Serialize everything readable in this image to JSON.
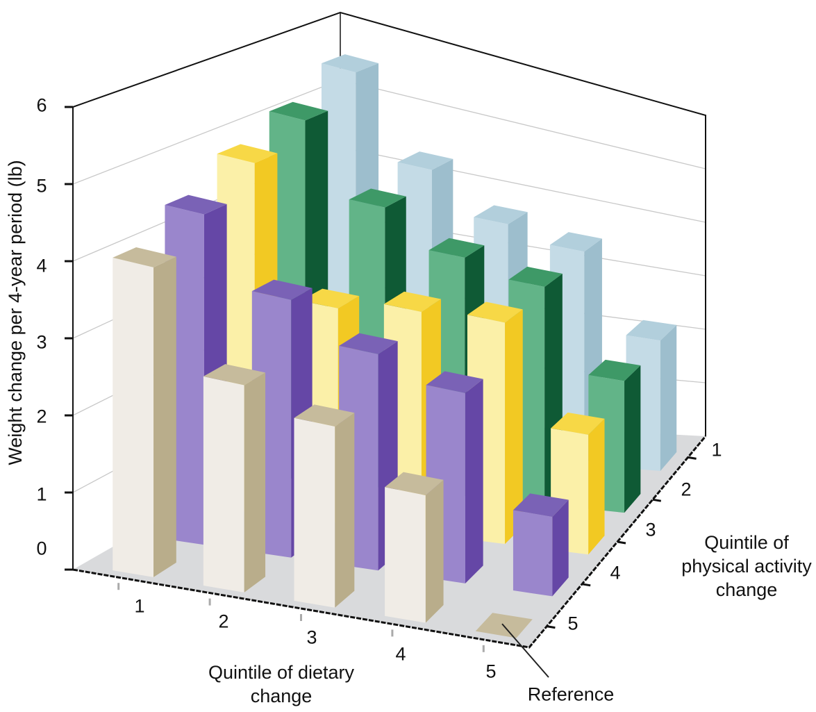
{
  "chart_data": {
    "type": "bar",
    "subtype": "3d-bar",
    "title": "",
    "ylabel": "Weight change per 4-year period (lb)",
    "xlabel": "Quintile of dietary change",
    "zlabel": "Quintile of physical activity change",
    "ylim": [
      0,
      6
    ],
    "yticks": [
      "0",
      "1",
      "2",
      "3",
      "4",
      "5",
      "6"
    ],
    "categories": [
      "1",
      "2",
      "3",
      "4",
      "5"
    ],
    "depth_categories": [
      "1",
      "2",
      "3",
      "4",
      "5"
    ],
    "series": [
      {
        "name": "1",
        "color": "#c4dbe6",
        "side": "#9dbecd",
        "top": "#b2cfdc",
        "values": [
          5.6,
          4.4,
          3.8,
          3.6,
          2.3
        ]
      },
      {
        "name": "2",
        "color": "#62b488",
        "side": "#0f5a35",
        "top": "#3e9967",
        "values": [
          5.2,
          4.2,
          3.7,
          3.5,
          2.2
        ]
      },
      {
        "name": "3",
        "color": "#fbf0a8",
        "side": "#f2c923",
        "top": "#f7d846",
        "values": [
          4.9,
          3.1,
          3.3,
          3.4,
          1.9
        ]
      },
      {
        "name": "4",
        "color": "#9a86cc",
        "side": "#6547a6",
        "top": "#7a62b6",
        "values": [
          4.5,
          3.6,
          3.1,
          2.8,
          1.2
        ]
      },
      {
        "name": "5",
        "color": "#f0ece6",
        "side": "#b9ad8b",
        "top": "#c6bb9c",
        "values": [
          4.1,
          2.8,
          2.5,
          1.8,
          0
        ]
      }
    ],
    "annotation": "Reference",
    "grid": true,
    "floor_color": "#d9dadc"
  }
}
